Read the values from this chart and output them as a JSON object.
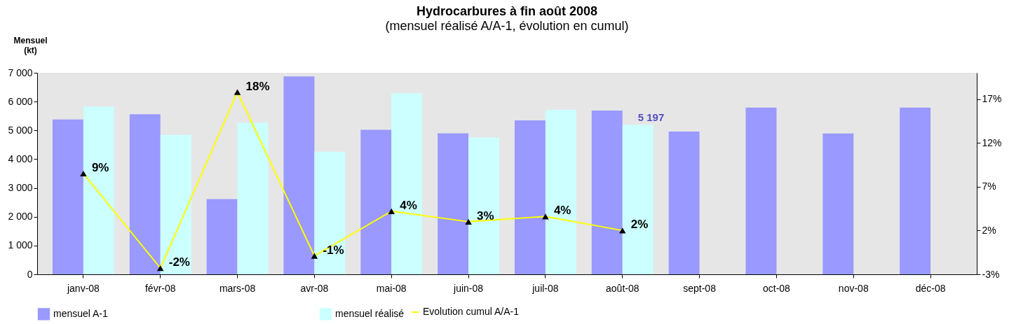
{
  "chart_data": {
    "type": "bar",
    "title": "Hydrocarbures à fin août 2008",
    "subtitle": "(mensuel réalisé A/A-1, évolution en cumul)",
    "ylabel": "Mensuel (kt)",
    "categories": [
      "janv-08",
      "févr-08",
      "mars-08",
      "avr-08",
      "mai-08",
      "juin-08",
      "juil-08",
      "août-08",
      "sept-08",
      "oct-08",
      "nov-08",
      "déc-08"
    ],
    "series": [
      {
        "name": "mensuel A-1",
        "color": "#9999ff",
        "values": [
          5380,
          5560,
          2610,
          6870,
          5020,
          4900,
          5350,
          5690,
          4960,
          5790,
          4890,
          5790
        ]
      },
      {
        "name": "mensuel réalisé",
        "color": "#ccffff",
        "values": [
          5830,
          4840,
          5260,
          4260,
          6290,
          4750,
          5710,
          5197,
          null,
          null,
          null,
          null
        ],
        "value_labels": [
          null,
          null,
          null,
          null,
          null,
          null,
          null,
          "5 197",
          null,
          null,
          null,
          null
        ]
      },
      {
        "name": "Evolution cumul A/A-1",
        "type": "line",
        "axis": "y2",
        "color": "#ffff00",
        "marker": "triangle",
        "values": [
          8.5,
          -2.3,
          17.8,
          -0.9,
          4.2,
          3.0,
          3.6,
          2.0,
          null,
          null,
          null,
          null
        ],
        "value_labels": [
          "9%",
          "-2%",
          "18%",
          "-1%",
          "4%",
          "3%",
          "4%",
          "2%",
          null,
          null,
          null,
          null
        ]
      }
    ],
    "ylim": [
      0,
      7000
    ],
    "yticks": [
      0,
      {
        "value": 1000,
        "label": "1 000"
      },
      {
        "value": 2000,
        "label": "2 000"
      },
      {
        "value": 3000,
        "label": "3 000"
      },
      {
        "value": 4000,
        "label": "4 000"
      },
      {
        "value": 5000,
        "label": "5 000"
      },
      {
        "value": 6000,
        "label": "6 000"
      },
      {
        "value": 7000,
        "label": "7 000"
      }
    ],
    "y2lim": [
      -3,
      20
    ],
    "y2ticks": [
      {
        "value": -3,
        "label": "-3%"
      },
      {
        "value": 2,
        "label": "2%"
      },
      {
        "value": 7,
        "label": "7%"
      },
      {
        "value": 12,
        "label": "12%"
      },
      {
        "value": 17,
        "label": "17%"
      }
    ],
    "grid": false,
    "legend": "bottom"
  }
}
